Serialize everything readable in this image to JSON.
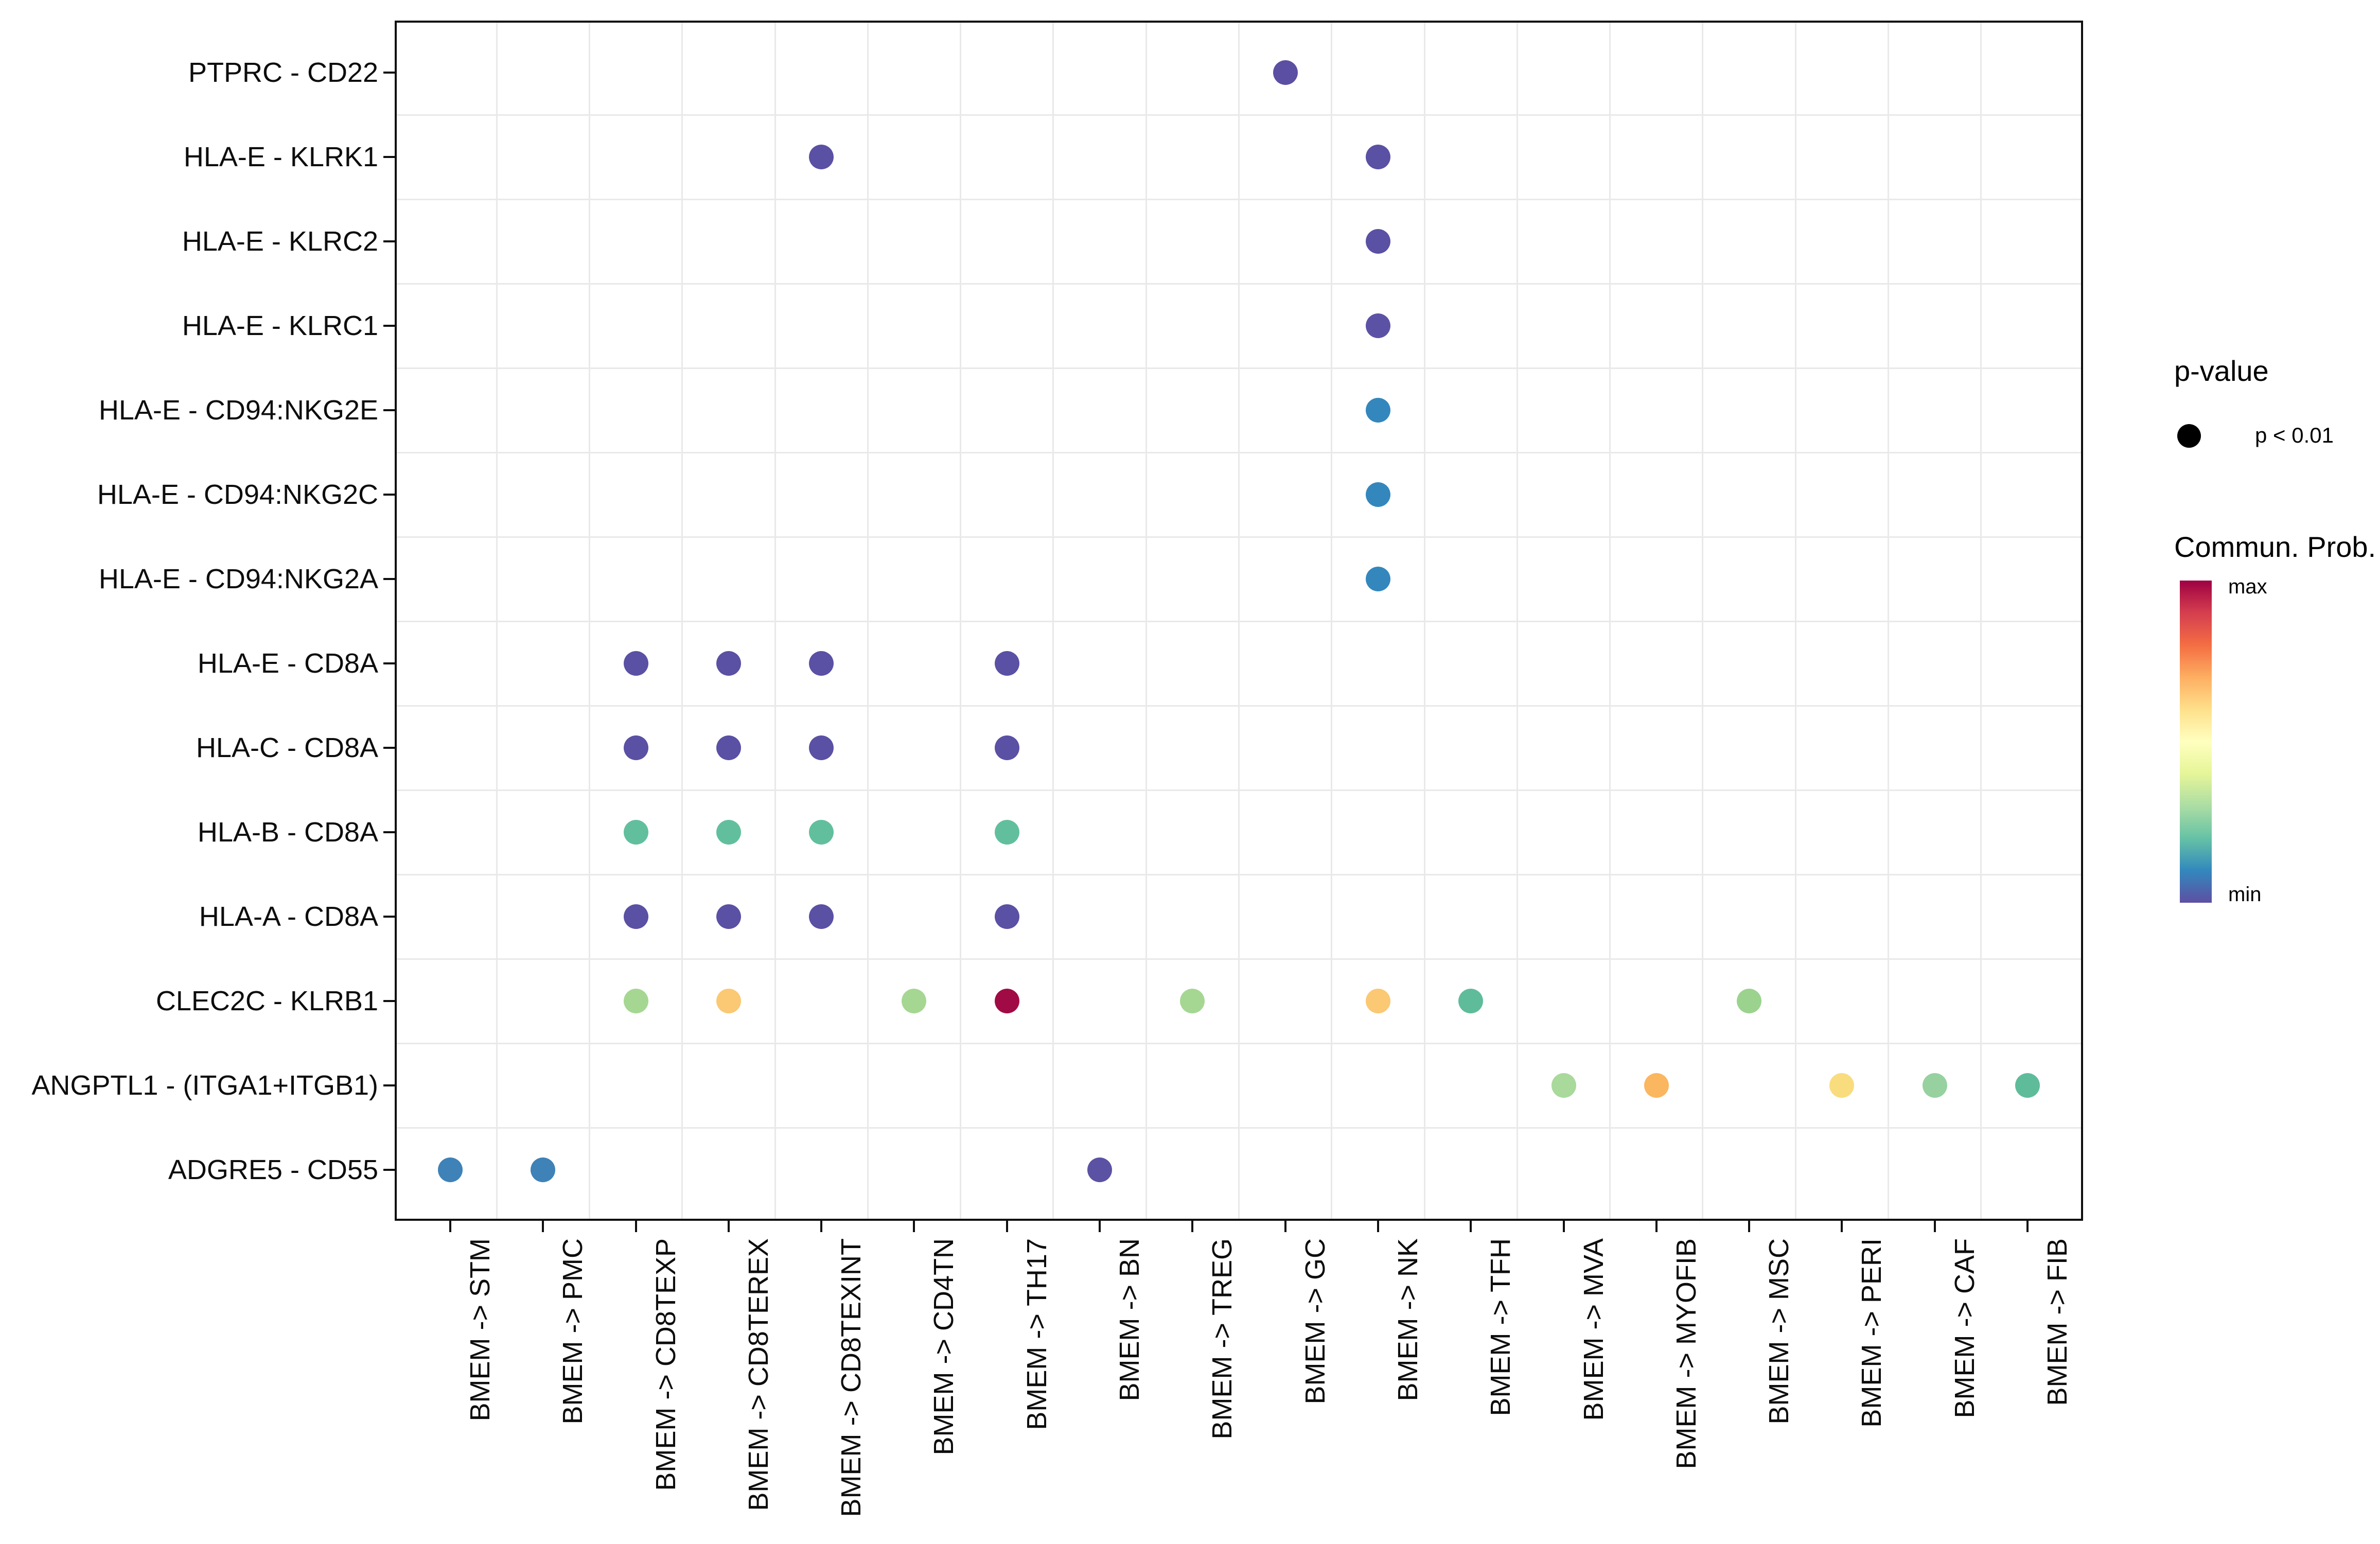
{
  "legend": {
    "pvalue_title": "p-value",
    "pvalue_item_label": "p < 0.01",
    "colorbar_title": "Commun. Prob.",
    "colorbar_max_label": "max",
    "colorbar_min_label": "min",
    "colorbar_colors_top_to_bottom": [
      "#9E0142",
      "#D53E4F",
      "#F46D43",
      "#FDAE61",
      "#FEE08B",
      "#FFFFBF",
      "#E6F598",
      "#ABDDA4",
      "#66C2A5",
      "#3288BD",
      "#5E4FA2"
    ]
  },
  "chart_data": {
    "type": "scatter",
    "subtype": "dot-plot (CellChat-style ligand-receptor communication bubble plot)",
    "x_categories": [
      "BMEM -> STM",
      "BMEM -> PMC",
      "BMEM -> CD8TEXP",
      "BMEM -> CD8TEREX",
      "BMEM -> CD8TEXINT",
      "BMEM -> CD4TN",
      "BMEM -> TH17",
      "BMEM -> BN",
      "BMEM -> TREG",
      "BMEM -> GC",
      "BMEM -> NK",
      "BMEM -> TFH",
      "BMEM -> MVA",
      "BMEM -> MYOFIB",
      "BMEM -> MSC",
      "BMEM -> PERI",
      "BMEM -> CAF",
      "BMEM -> FIB"
    ],
    "y_categories": [
      "PTPRC - CD22",
      "HLA-E - KLRK1",
      "HLA-E - KLRC2",
      "HLA-E - KLRC1",
      "HLA-E - CD94:NKG2E",
      "HLA-E - CD94:NKG2C",
      "HLA-E - CD94:NKG2A",
      "HLA-E - CD8A",
      "HLA-C - CD8A",
      "HLA-B - CD8A",
      "HLA-A - CD8A",
      "CLEC2C - KLRB1",
      "ANGPTL1 - (ITGA1+ITGB1)",
      "ADGRE5 - CD55"
    ],
    "size_encoding": "all dots shown have p < 0.01",
    "color_encoding": "communication probability, Spectral-reversed colormap from min (blue-purple) to max (dark red)",
    "grid": "light gray lines at midpoints between categories",
    "legend_position": "right",
    "points": [
      {
        "y": "PTPRC - CD22",
        "x": "BMEM -> GC",
        "color": "#5B4FA3"
      },
      {
        "y": "HLA-E - KLRK1",
        "x": "BMEM -> CD8TEXINT",
        "color": "#5A50A4"
      },
      {
        "y": "HLA-E - KLRK1",
        "x": "BMEM -> NK",
        "color": "#5A50A4"
      },
      {
        "y": "HLA-E - KLRC2",
        "x": "BMEM -> NK",
        "color": "#5A50A4"
      },
      {
        "y": "HLA-E - KLRC1",
        "x": "BMEM -> NK",
        "color": "#5C52A5"
      },
      {
        "y": "HLA-E - CD94:NKG2E",
        "x": "BMEM -> NK",
        "color": "#3387BD"
      },
      {
        "y": "HLA-E - CD94:NKG2C",
        "x": "BMEM -> NK",
        "color": "#3387BD"
      },
      {
        "y": "HLA-E - CD94:NKG2A",
        "x": "BMEM -> NK",
        "color": "#3387BD"
      },
      {
        "y": "HLA-E - CD8A",
        "x": "BMEM -> CD8TEXP",
        "color": "#5A50A4"
      },
      {
        "y": "HLA-E - CD8A",
        "x": "BMEM -> CD8TEREX",
        "color": "#5A50A4"
      },
      {
        "y": "HLA-E - CD8A",
        "x": "BMEM -> CD8TEXINT",
        "color": "#5A50A4"
      },
      {
        "y": "HLA-E - CD8A",
        "x": "BMEM -> TH17",
        "color": "#5A50A4"
      },
      {
        "y": "HLA-C - CD8A",
        "x": "BMEM -> CD8TEXP",
        "color": "#5A50A4"
      },
      {
        "y": "HLA-C - CD8A",
        "x": "BMEM -> CD8TEREX",
        "color": "#5A50A4"
      },
      {
        "y": "HLA-C - CD8A",
        "x": "BMEM -> CD8TEXINT",
        "color": "#5A50A4"
      },
      {
        "y": "HLA-C - CD8A",
        "x": "BMEM -> TH17",
        "color": "#5A50A4"
      },
      {
        "y": "HLA-B - CD8A",
        "x": "BMEM -> CD8TEXP",
        "color": "#62BF9E"
      },
      {
        "y": "HLA-B - CD8A",
        "x": "BMEM -> CD8TEREX",
        "color": "#62BF9E"
      },
      {
        "y": "HLA-B - CD8A",
        "x": "BMEM -> CD8TEXINT",
        "color": "#62BF9E"
      },
      {
        "y": "HLA-B - CD8A",
        "x": "BMEM -> TH17",
        "color": "#62BF9E"
      },
      {
        "y": "HLA-A - CD8A",
        "x": "BMEM -> CD8TEXP",
        "color": "#5A50A4"
      },
      {
        "y": "HLA-A - CD8A",
        "x": "BMEM -> CD8TEREX",
        "color": "#5A50A4"
      },
      {
        "y": "HLA-A - CD8A",
        "x": "BMEM -> CD8TEXINT",
        "color": "#5A50A4"
      },
      {
        "y": "HLA-A - CD8A",
        "x": "BMEM -> TH17",
        "color": "#5A50A4"
      },
      {
        "y": "CLEC2C - KLRB1",
        "x": "BMEM -> CD8TEXP",
        "color": "#A5D792"
      },
      {
        "y": "CLEC2C - KLRB1",
        "x": "BMEM -> CD8TEREX",
        "color": "#FBC873"
      },
      {
        "y": "CLEC2C - KLRB1",
        "x": "BMEM -> CD4TN",
        "color": "#A5D792"
      },
      {
        "y": "CLEC2C - KLRB1",
        "x": "BMEM -> TH17",
        "color": "#A10B45"
      },
      {
        "y": "CLEC2C - KLRB1",
        "x": "BMEM -> TREG",
        "color": "#A5D792"
      },
      {
        "y": "CLEC2C - KLRB1",
        "x": "BMEM -> NK",
        "color": "#FBC873"
      },
      {
        "y": "CLEC2C - KLRB1",
        "x": "BMEM -> TFH",
        "color": "#5FBC9B"
      },
      {
        "y": "CLEC2C - KLRB1",
        "x": "BMEM -> MSC",
        "color": "#9BD38E"
      },
      {
        "y": "ANGPTL1 - (ITGA1+ITGB1)",
        "x": "BMEM -> MVA",
        "color": "#A9D99B"
      },
      {
        "y": "ANGPTL1 - (ITGA1+ITGB1)",
        "x": "BMEM -> MYOFIB",
        "color": "#FBB660"
      },
      {
        "y": "ANGPTL1 - (ITGA1+ITGB1)",
        "x": "BMEM -> PERI",
        "color": "#F9DC7E"
      },
      {
        "y": "ANGPTL1 - (ITGA1+ITGB1)",
        "x": "BMEM -> CAF",
        "color": "#97D1A0"
      },
      {
        "y": "ANGPTL1 - (ITGA1+ITGB1)",
        "x": "BMEM -> FIB",
        "color": "#5FBC9B"
      },
      {
        "y": "ADGRE5 - CD55",
        "x": "BMEM -> STM",
        "color": "#3E82B7"
      },
      {
        "y": "ADGRE5 - CD55",
        "x": "BMEM -> PMC",
        "color": "#3E82B7"
      },
      {
        "y": "ADGRE5 - CD55",
        "x": "BMEM -> BN",
        "color": "#5B52A3"
      }
    ]
  }
}
